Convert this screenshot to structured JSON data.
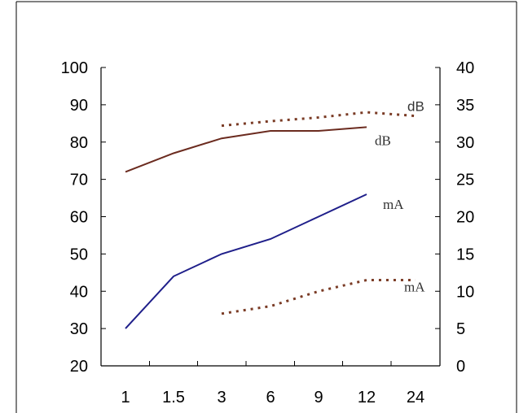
{
  "chart_data": {
    "type": "line",
    "title": "",
    "xlabel": "",
    "ylabel": "",
    "y2label": "",
    "categories": [
      "1",
      "1.5",
      "3",
      "6",
      "9",
      "12",
      "24"
    ],
    "ylim": [
      20,
      100
    ],
    "yticks": [
      "20",
      "30",
      "40",
      "50",
      "60",
      "70",
      "80",
      "90",
      "100"
    ],
    "y2lim": [
      0,
      40
    ],
    "y2ticks": [
      "0",
      "5",
      "10",
      "15",
      "20",
      "25",
      "30",
      "35",
      "40"
    ],
    "grid": false,
    "series": [
      {
        "name": "dB",
        "axis": "left",
        "style": "solid",
        "color": "#6b2b1f",
        "values": [
          72,
          77,
          81,
          83,
          83,
          84,
          null
        ]
      },
      {
        "name": "mA",
        "axis": "left",
        "style": "solid",
        "color": "#1f1f8a",
        "values": [
          30,
          44,
          50,
          54,
          60,
          66,
          null
        ]
      },
      {
        "name": "dB",
        "axis": "right",
        "style": "dotted",
        "color": "#7a3b25",
        "values": [
          null,
          null,
          32.2,
          32.8,
          33.3,
          34.0,
          33.5
        ]
      },
      {
        "name": "mA",
        "axis": "right",
        "style": "dotted",
        "color": "#7a3b25",
        "values": [
          null,
          null,
          7.0,
          8.0,
          10.0,
          11.5,
          11.5
        ]
      }
    ],
    "labels": [
      {
        "text": "dB",
        "font": "sans",
        "series": 2
      },
      {
        "text": "dB",
        "font": "serif",
        "series": 0
      },
      {
        "text": "mA",
        "font": "serif",
        "series": 1
      },
      {
        "text": "mA",
        "font": "serif",
        "series": 3
      }
    ]
  }
}
